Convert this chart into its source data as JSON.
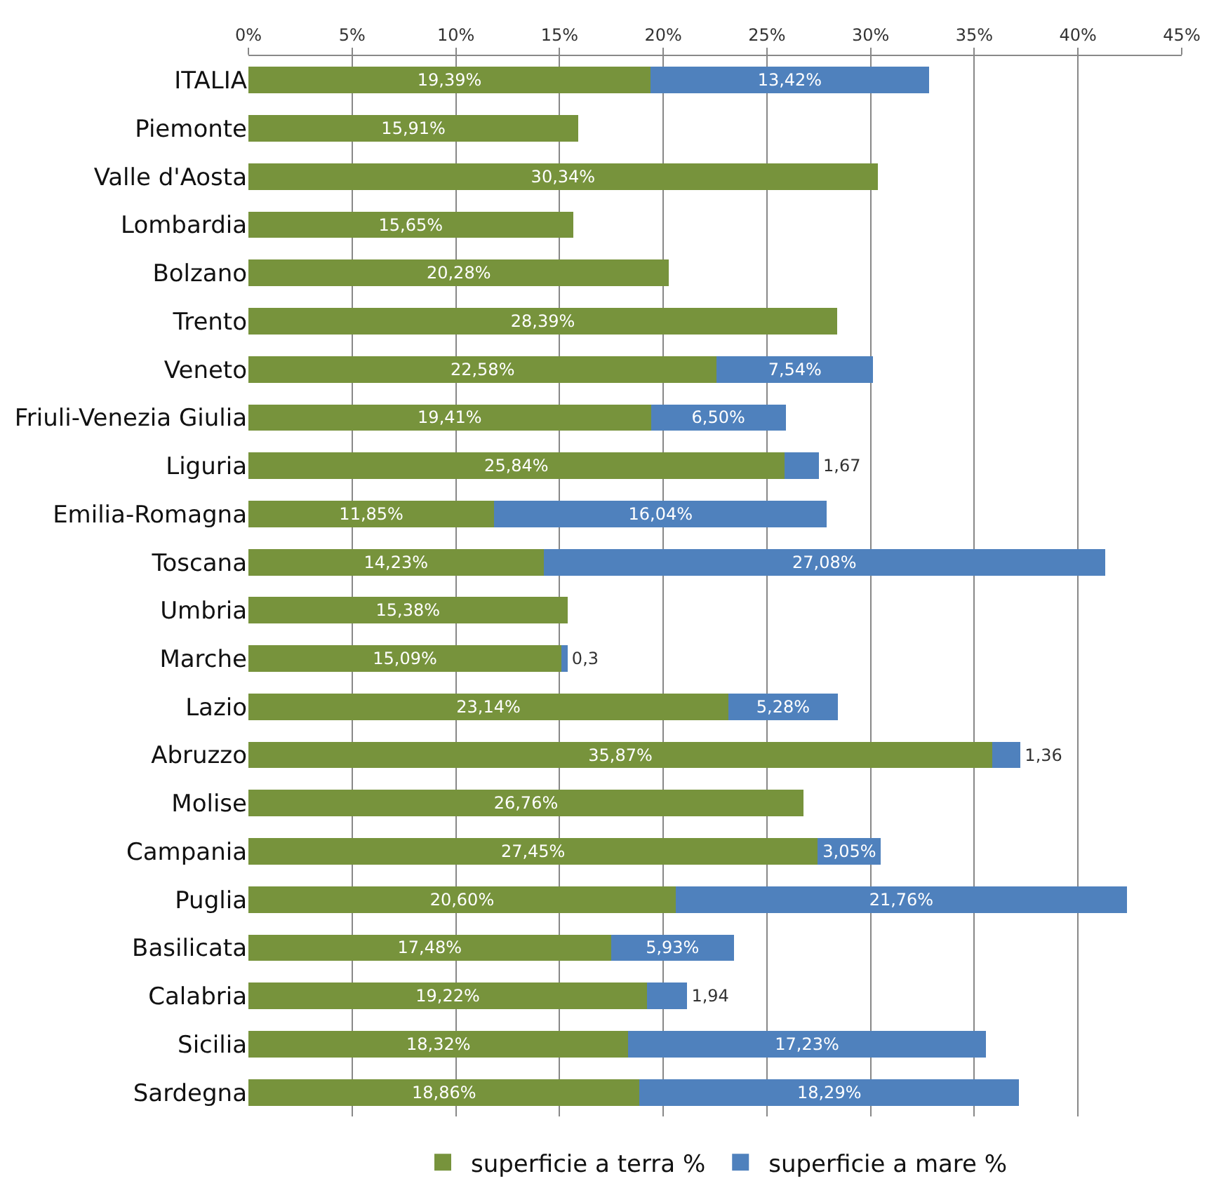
{
  "chart_data": {
    "type": "bar",
    "orientation": "horizontal",
    "stacked": true,
    "categories": [
      "ITALIA",
      "Piemonte",
      "Valle d'Aosta",
      "Lombardia",
      "Bolzano",
      "Trento",
      "Veneto",
      "Friuli-Venezia Giulia",
      "Liguria",
      "Emilia-Romagna",
      "Toscana",
      "Umbria",
      "Marche",
      "Lazio",
      "Abruzzo",
      "Molise",
      "Campania",
      "Puglia",
      "Basilicata",
      "Calabria",
      "Sicilia",
      "Sardegna"
    ],
    "series": [
      {
        "name": "superficie a terra %",
        "color": "#77933c",
        "values": [
          19.39,
          15.91,
          30.34,
          15.65,
          20.28,
          28.39,
          22.58,
          19.41,
          25.84,
          11.85,
          14.23,
          15.38,
          15.09,
          23.14,
          35.87,
          26.76,
          27.45,
          20.6,
          17.48,
          19.22,
          18.32,
          18.86
        ],
        "value_labels": [
          "19,39%",
          "15,91%",
          "30,34%",
          "15,65%",
          "20,28%",
          "28,39%",
          "22,58%",
          "19,41%",
          "25,84%",
          "11,85%",
          "14,23%",
          "15,38%",
          "15,09%",
          "23,14%",
          "35,87%",
          "26,76%",
          "27,45%",
          "20,60%",
          "17,48%",
          "19,22%",
          "18,32%",
          "18,86%"
        ]
      },
      {
        "name": "superficie a mare %",
        "color": "#4f81bd",
        "values": [
          13.42,
          null,
          null,
          null,
          null,
          null,
          7.54,
          6.5,
          1.67,
          16.04,
          27.08,
          null,
          0.3,
          5.28,
          1.36,
          null,
          3.05,
          21.76,
          5.93,
          1.94,
          17.23,
          18.29
        ],
        "value_labels": [
          "13,42%",
          null,
          null,
          null,
          null,
          null,
          "7,54%",
          "6,50%",
          "1,67",
          "16,04%",
          "27,08%",
          null,
          "0,3",
          "5,28%",
          "1,36",
          null,
          "3,05%",
          "21,76%",
          "5,93%",
          "1,94",
          "17,23%",
          "18,29%"
        ]
      }
    ],
    "xlim": [
      0,
      45
    ],
    "xticks": [
      {
        "value": 0,
        "label": "0%"
      },
      {
        "value": 5,
        "label": "5%"
      },
      {
        "value": 10,
        "label": "10%"
      },
      {
        "value": 15,
        "label": "15%"
      },
      {
        "value": 20,
        "label": "20%"
      },
      {
        "value": 25,
        "label": "25%"
      },
      {
        "value": 30,
        "label": "30%"
      },
      {
        "value": 35,
        "label": "35%"
      },
      {
        "value": 40,
        "label": "40%"
      },
      {
        "value": 45,
        "label": "45%"
      }
    ],
    "grid": "x",
    "legend": "bottom"
  }
}
